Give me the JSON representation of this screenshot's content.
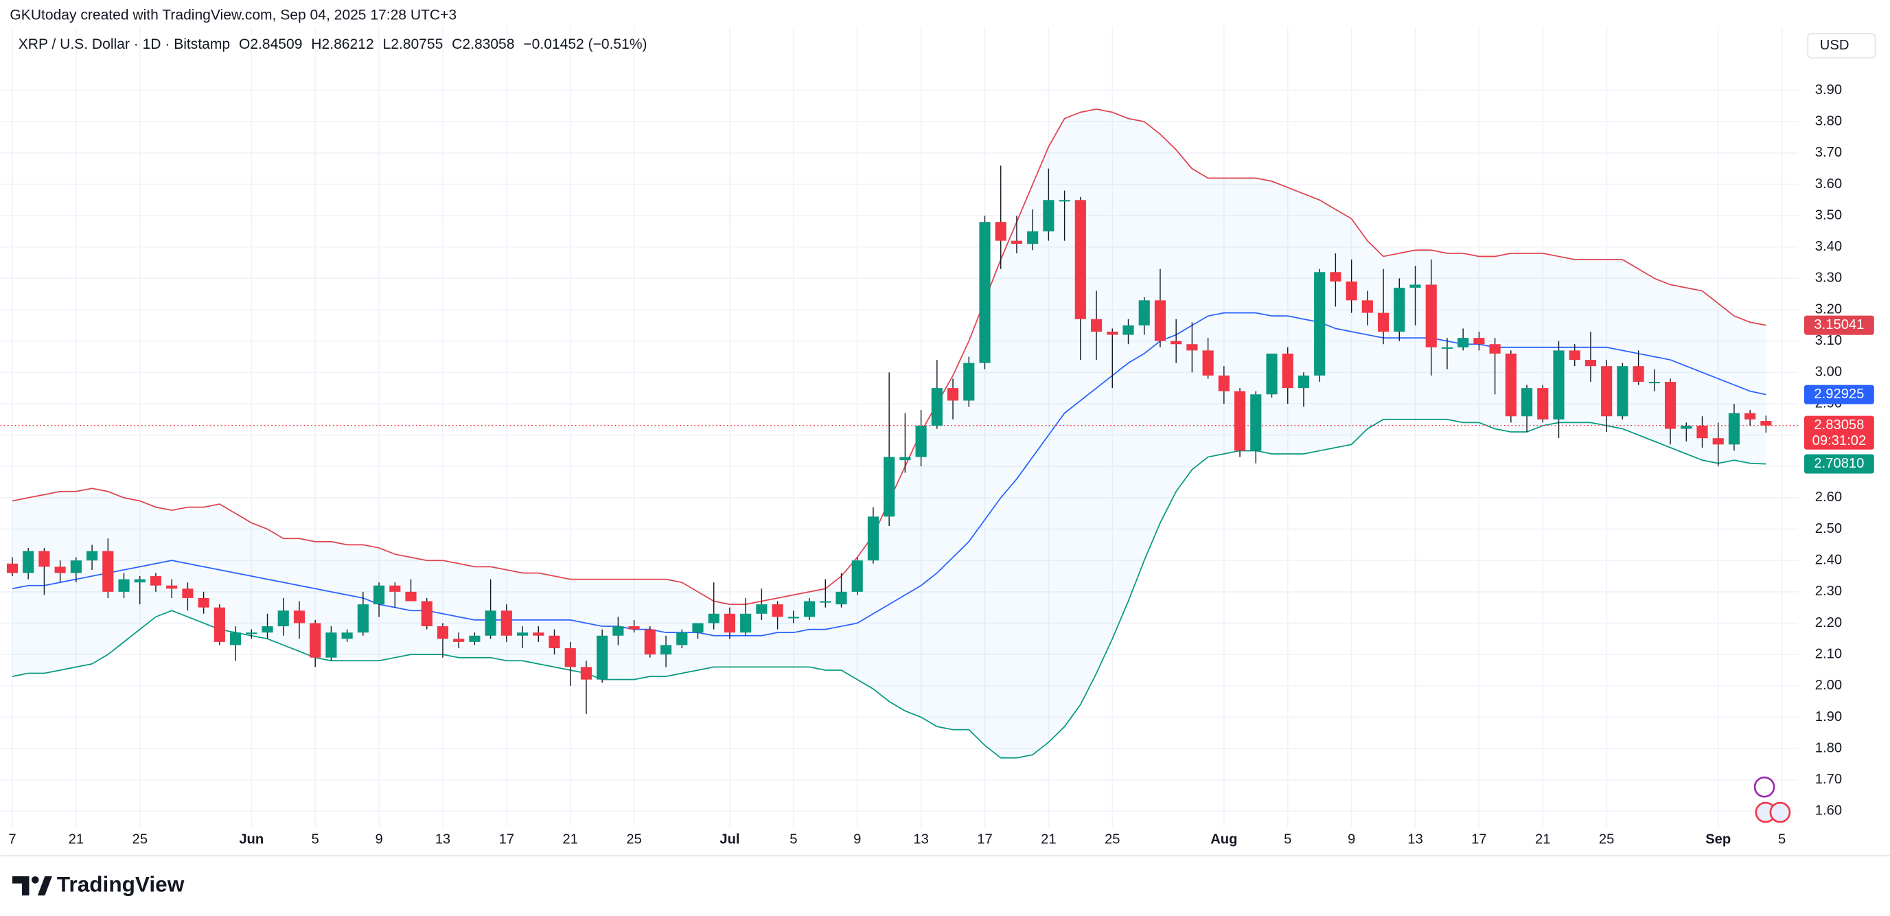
{
  "chart_data": {
    "type": "candlestick",
    "attribution": "GKUtoday created with TradingView.com, Sep 04, 2025 17:28 UTC+3",
    "title": "XRP / U.S. Dollar · 1D · Bitstamp",
    "ohlc_keys": [
      "O",
      "H",
      "L",
      "C"
    ],
    "change_label": "−0.01452 (−0.51%)",
    "currency": "USD",
    "countdown": "09:31:02",
    "brand": "TradingView",
    "grid": true,
    "up_color": "#089981",
    "down_color": "#f23645",
    "categories": [
      "7",
      null,
      null,
      null,
      "21",
      null,
      null,
      null,
      "25",
      null,
      null,
      null,
      null,
      null,
      null,
      "Jun",
      null,
      null,
      null,
      "5",
      null,
      null,
      null,
      "9",
      null,
      null,
      null,
      "13",
      null,
      null,
      null,
      "17",
      null,
      null,
      null,
      "21",
      null,
      null,
      null,
      "25",
      null,
      null,
      null,
      null,
      null,
      "Jul",
      null,
      null,
      null,
      "5",
      null,
      null,
      null,
      "9",
      null,
      null,
      null,
      "13",
      null,
      null,
      null,
      "17",
      null,
      null,
      null,
      "21",
      null,
      null,
      null,
      "25",
      null,
      null,
      null,
      null,
      null,
      null,
      "Aug",
      null,
      null,
      null,
      "5",
      null,
      null,
      null,
      "9",
      null,
      null,
      null,
      "13",
      null,
      null,
      null,
      "17",
      null,
      null,
      null,
      "21",
      null,
      null,
      null,
      "25",
      null,
      null,
      null,
      null,
      null,
      null,
      "Sep",
      null,
      null,
      null,
      "5"
    ],
    "open": [
      2.39,
      2.36,
      2.43,
      2.38,
      2.36,
      2.4,
      2.43,
      2.3,
      2.33,
      2.35,
      2.32,
      2.31,
      2.28,
      2.25,
      2.13,
      2.17,
      2.17,
      2.19,
      2.24,
      2.2,
      2.09,
      2.15,
      2.17,
      2.26,
      2.32,
      2.3,
      2.27,
      2.19,
      2.15,
      2.14,
      2.16,
      2.24,
      2.16,
      2.17,
      2.16,
      2.12,
      2.06,
      2.02,
      2.16,
      2.19,
      2.18,
      2.1,
      2.13,
      2.17,
      2.2,
      2.23,
      2.17,
      2.23,
      2.26,
      2.22,
      2.22,
      2.27,
      2.26,
      2.3,
      2.4,
      2.54,
      2.72,
      2.73,
      2.83,
      2.95,
      2.91,
      3.03,
      3.48,
      3.42,
      3.41,
      3.45,
      3.55,
      3.55,
      3.17,
      3.13,
      3.12,
      3.15,
      3.23,
      3.1,
      3.09,
      3.07,
      2.99,
      2.94,
      2.75,
      2.93,
      3.06,
      2.95,
      2.99,
      3.32,
      3.29,
      3.23,
      3.19,
      3.13,
      3.27,
      3.28,
      3.08,
      3.08,
      3.11,
      3.09,
      3.06,
      2.86,
      2.95,
      2.85,
      3.07,
      3.04,
      3.02,
      2.86,
      3.02,
      2.97,
      2.97,
      2.82,
      2.83,
      2.79,
      2.77,
      2.87,
      2.84509,
      null
    ],
    "high": [
      2.41,
      2.44,
      2.44,
      2.4,
      2.41,
      2.45,
      2.47,
      2.36,
      2.35,
      2.36,
      2.34,
      2.33,
      2.3,
      2.26,
      2.19,
      2.18,
      2.23,
      2.28,
      2.27,
      2.21,
      2.19,
      2.18,
      2.3,
      2.33,
      2.33,
      2.34,
      2.28,
      2.2,
      2.17,
      2.17,
      2.34,
      2.26,
      2.19,
      2.19,
      2.18,
      2.14,
      2.08,
      2.18,
      2.22,
      2.21,
      2.19,
      2.16,
      2.18,
      2.2,
      2.33,
      2.25,
      2.28,
      2.31,
      2.27,
      2.24,
      2.28,
      2.34,
      2.36,
      2.41,
      2.57,
      3.0,
      2.87,
      2.88,
      3.04,
      2.98,
      3.05,
      3.5,
      3.66,
      3.5,
      3.52,
      3.65,
      3.58,
      3.56,
      3.26,
      3.14,
      3.17,
      3.24,
      3.33,
      3.17,
      3.16,
      3.11,
      3.02,
      2.95,
      2.94,
      3.06,
      3.08,
      3.0,
      3.33,
      3.38,
      3.36,
      3.26,
      3.33,
      3.3,
      3.34,
      3.36,
      3.11,
      3.14,
      3.13,
      3.11,
      3.07,
      2.96,
      2.96,
      3.1,
      3.09,
      3.13,
      3.04,
      3.03,
      3.07,
      3.01,
      2.98,
      2.84,
      2.86,
      2.84,
      2.9,
      2.88,
      2.86212,
      null
    ],
    "low": [
      2.35,
      2.34,
      2.29,
      2.33,
      2.33,
      2.37,
      2.28,
      2.28,
      2.26,
      2.3,
      2.28,
      2.24,
      2.23,
      2.13,
      2.08,
      2.15,
      2.15,
      2.16,
      2.15,
      2.06,
      2.08,
      2.14,
      2.16,
      2.22,
      2.25,
      2.27,
      2.18,
      2.09,
      2.12,
      2.13,
      2.15,
      2.14,
      2.12,
      2.14,
      2.1,
      2.0,
      1.91,
      2.01,
      2.13,
      2.17,
      2.09,
      2.06,
      2.12,
      2.15,
      2.18,
      2.15,
      2.16,
      2.21,
      2.18,
      2.2,
      2.21,
      2.25,
      2.25,
      2.29,
      2.39,
      2.51,
      2.68,
      2.7,
      2.82,
      2.85,
      2.89,
      3.01,
      3.33,
      3.38,
      3.39,
      3.42,
      3.42,
      3.04,
      3.04,
      2.95,
      3.09,
      3.12,
      3.08,
      3.03,
      3.0,
      2.98,
      2.9,
      2.73,
      2.71,
      2.92,
      2.9,
      2.89,
      2.97,
      3.21,
      3.19,
      3.15,
      3.09,
      3.1,
      3.15,
      2.99,
      3.01,
      3.07,
      3.07,
      2.93,
      2.84,
      2.81,
      2.84,
      2.79,
      3.02,
      2.97,
      2.81,
      2.85,
      2.96,
      2.94,
      2.77,
      2.78,
      2.76,
      2.7,
      2.75,
      2.83,
      2.80755,
      null
    ],
    "close": [
      2.36,
      2.43,
      2.38,
      2.36,
      2.4,
      2.43,
      2.3,
      2.34,
      2.34,
      2.32,
      2.31,
      2.28,
      2.25,
      2.14,
      2.17,
      2.17,
      2.19,
      2.24,
      2.2,
      2.09,
      2.17,
      2.17,
      2.26,
      2.32,
      2.3,
      2.27,
      2.19,
      2.15,
      2.14,
      2.16,
      2.24,
      2.16,
      2.17,
      2.16,
      2.12,
      2.06,
      2.02,
      2.16,
      2.19,
      2.18,
      2.1,
      2.13,
      2.17,
      2.2,
      2.23,
      2.17,
      2.23,
      2.26,
      2.22,
      2.22,
      2.27,
      2.27,
      2.3,
      2.4,
      2.54,
      2.73,
      2.73,
      2.83,
      2.95,
      2.91,
      3.03,
      3.48,
      3.42,
      3.41,
      3.45,
      3.55,
      3.55,
      3.17,
      3.13,
      3.12,
      3.15,
      3.23,
      3.1,
      3.09,
      3.07,
      2.99,
      2.94,
      2.75,
      2.93,
      3.06,
      2.95,
      2.99,
      3.32,
      3.29,
      3.23,
      3.19,
      3.13,
      3.27,
      3.28,
      3.08,
      3.08,
      3.11,
      3.09,
      3.06,
      2.86,
      2.95,
      2.85,
      3.07,
      3.04,
      3.02,
      2.86,
      3.02,
      2.97,
      2.97,
      2.82,
      2.83,
      2.79,
      2.77,
      2.87,
      2.85,
      2.83058,
      null
    ],
    "bands": [
      {
        "color": "#e0434f",
        "last_label": "3.15041",
        "values": [
          2.59,
          2.6,
          2.61,
          2.62,
          2.62,
          2.63,
          2.62,
          2.6,
          2.59,
          2.57,
          2.56,
          2.57,
          2.57,
          2.58,
          2.55,
          2.52,
          2.5,
          2.47,
          2.47,
          2.46,
          2.46,
          2.45,
          2.45,
          2.44,
          2.42,
          2.41,
          2.4,
          2.4,
          2.39,
          2.38,
          2.38,
          2.37,
          2.36,
          2.36,
          2.35,
          2.34,
          2.34,
          2.34,
          2.34,
          2.34,
          2.34,
          2.34,
          2.33,
          2.3,
          2.27,
          2.26,
          2.26,
          2.27,
          2.28,
          2.29,
          2.3,
          2.31,
          2.35,
          2.41,
          2.48,
          2.59,
          2.7,
          2.81,
          2.9,
          2.99,
          3.1,
          3.23,
          3.36,
          3.48,
          3.6,
          3.72,
          3.81,
          3.83,
          3.84,
          3.83,
          3.81,
          3.8,
          3.76,
          3.71,
          3.65,
          3.62,
          3.62,
          3.62,
          3.62,
          3.61,
          3.59,
          3.57,
          3.55,
          3.52,
          3.49,
          3.42,
          3.37,
          3.38,
          3.39,
          3.39,
          3.38,
          3.38,
          3.37,
          3.37,
          3.38,
          3.38,
          3.38,
          3.37,
          3.36,
          3.36,
          3.36,
          3.36,
          3.33,
          3.3,
          3.28,
          3.27,
          3.26,
          3.22,
          3.18,
          3.16,
          3.15041,
          null
        ]
      },
      {
        "color": "#2962ff",
        "last_label": "2.92925",
        "values": [
          2.31,
          2.32,
          2.32,
          2.33,
          2.34,
          2.35,
          2.36,
          2.37,
          2.38,
          2.39,
          2.4,
          2.39,
          2.38,
          2.37,
          2.36,
          2.35,
          2.34,
          2.33,
          2.32,
          2.31,
          2.3,
          2.29,
          2.28,
          2.26,
          2.25,
          2.24,
          2.24,
          2.23,
          2.22,
          2.21,
          2.21,
          2.21,
          2.21,
          2.21,
          2.21,
          2.21,
          2.2,
          2.19,
          2.19,
          2.18,
          2.18,
          2.17,
          2.17,
          2.17,
          2.16,
          2.16,
          2.16,
          2.16,
          2.17,
          2.17,
          2.18,
          2.18,
          2.19,
          2.2,
          2.23,
          2.26,
          2.29,
          2.32,
          2.36,
          2.41,
          2.46,
          2.53,
          2.6,
          2.66,
          2.73,
          2.8,
          2.87,
          2.91,
          2.95,
          2.99,
          3.03,
          3.06,
          3.1,
          3.12,
          3.15,
          3.18,
          3.19,
          3.19,
          3.19,
          3.18,
          3.18,
          3.17,
          3.16,
          3.14,
          3.13,
          3.12,
          3.11,
          3.11,
          3.11,
          3.11,
          3.1,
          3.09,
          3.09,
          3.08,
          3.08,
          3.08,
          3.08,
          3.08,
          3.08,
          3.08,
          3.08,
          3.07,
          3.06,
          3.05,
          3.04,
          3.02,
          3.0,
          2.98,
          2.96,
          2.94,
          2.92925,
          null
        ]
      },
      {
        "color": "#089981",
        "last_label": "2.70810",
        "values": [
          2.03,
          2.04,
          2.04,
          2.05,
          2.06,
          2.07,
          2.1,
          2.14,
          2.18,
          2.22,
          2.24,
          2.22,
          2.2,
          2.18,
          2.17,
          2.16,
          2.15,
          2.13,
          2.11,
          2.09,
          2.08,
          2.08,
          2.08,
          2.08,
          2.09,
          2.1,
          2.1,
          2.1,
          2.09,
          2.09,
          2.09,
          2.08,
          2.08,
          2.07,
          2.06,
          2.05,
          2.04,
          2.02,
          2.02,
          2.02,
          2.03,
          2.03,
          2.04,
          2.05,
          2.06,
          2.06,
          2.06,
          2.06,
          2.06,
          2.06,
          2.06,
          2.05,
          2.05,
          2.02,
          1.99,
          1.95,
          1.92,
          1.9,
          1.87,
          1.86,
          1.86,
          1.81,
          1.77,
          1.77,
          1.78,
          1.82,
          1.87,
          1.94,
          2.04,
          2.15,
          2.27,
          2.4,
          2.52,
          2.62,
          2.69,
          2.73,
          2.74,
          2.75,
          2.75,
          2.74,
          2.74,
          2.74,
          2.75,
          2.76,
          2.77,
          2.82,
          2.85,
          2.85,
          2.85,
          2.85,
          2.85,
          2.84,
          2.84,
          2.82,
          2.81,
          2.81,
          2.83,
          2.84,
          2.84,
          2.84,
          2.83,
          2.82,
          2.8,
          2.78,
          2.76,
          2.74,
          2.72,
          2.71,
          2.72,
          2.71,
          2.7081,
          null
        ]
      }
    ],
    "ylim": [
      1.554,
      4.092
    ],
    "yticks": [
      {
        "value": 1.6,
        "label": "1.60"
      },
      {
        "value": 1.7,
        "label": "1.70"
      },
      {
        "value": 1.8,
        "label": "1.80"
      },
      {
        "value": 1.9,
        "label": "1.90"
      },
      {
        "value": 2.0,
        "label": "2.00"
      },
      {
        "value": 2.1,
        "label": "2.10"
      },
      {
        "value": 2.2,
        "label": "2.20"
      },
      {
        "value": 2.3,
        "label": "2.30"
      },
      {
        "value": 2.4,
        "label": "2.40"
      },
      {
        "value": 2.5,
        "label": "2.50"
      },
      {
        "value": 2.6,
        "label": "2.60"
      },
      {
        "value": 2.7,
        "label": "2.70"
      },
      {
        "value": 2.8,
        "label": "2.80"
      },
      {
        "value": 2.9,
        "label": "2.90"
      },
      {
        "value": 3.0,
        "label": "3.00"
      },
      {
        "value": 3.1,
        "label": "3.10"
      },
      {
        "value": 3.2,
        "label": "3.20"
      },
      {
        "value": 3.3,
        "label": "3.30"
      },
      {
        "value": 3.4,
        "label": "3.40"
      },
      {
        "value": 3.5,
        "label": "3.50"
      },
      {
        "value": 3.6,
        "label": "3.60"
      },
      {
        "value": 3.7,
        "label": "3.70"
      },
      {
        "value": 3.8,
        "label": "3.80"
      },
      {
        "value": 3.9,
        "label": "3.90"
      }
    ]
  }
}
